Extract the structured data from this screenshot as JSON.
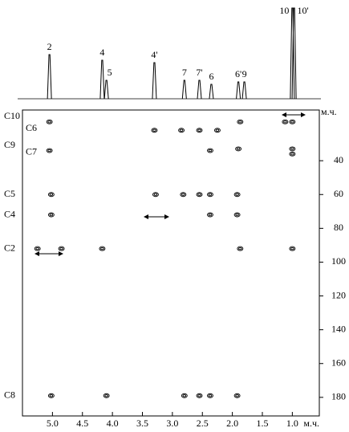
{
  "chart_data": {
    "type": "nmr2d",
    "x_unit": "м.ч.",
    "y_unit": "м.ч.",
    "xlim": [
      5.5,
      0.55
    ],
    "xticks": [
      {
        "value": 5,
        "label": "5.0"
      },
      4.5,
      {
        "value": 4,
        "label": "4.0"
      },
      3.5,
      {
        "value": 3,
        "label": "3.0"
      },
      2.5,
      {
        "value": 2,
        "label": "2.0"
      },
      1.5,
      {
        "value": 1,
        "label": "1.0"
      }
    ],
    "ylim": [
      10,
      191
    ],
    "yticks": [
      40,
      60,
      80,
      100,
      120,
      140,
      160,
      180
    ],
    "color": "#000000",
    "spectrum": {
      "labels": [
        "2",
        "4",
        "5",
        "4'",
        "7",
        "7'",
        "6",
        "6'",
        "9",
        "10",
        "10'"
      ],
      "ppm": [
        5.05,
        4.17,
        4.1,
        3.3,
        2.8,
        2.55,
        2.35,
        1.9,
        1.8,
        1.0,
        0.97
      ],
      "height": [
        55,
        48,
        23,
        45,
        23,
        23,
        18,
        21,
        21,
        113,
        113
      ]
    },
    "carbon_labels": {
      "labels": [
        "C10",
        "C6",
        "C9",
        "C7",
        "C5",
        "C4",
        "C2",
        "C8"
      ],
      "ppm": [
        14,
        21,
        31,
        35,
        60,
        72,
        92,
        179
      ]
    },
    "cross_peaks": {
      "x": [
        5.05,
        3.3,
        2.85,
        2.55,
        2.25,
        1.87,
        1.12,
        1.0,
        5.05,
        2.37,
        1.9,
        1.0,
        1.0,
        5.02,
        3.28,
        2.82,
        2.55,
        2.37,
        1.92,
        5.02,
        2.37,
        1.92,
        5.25,
        4.85,
        4.17,
        1.87,
        1.0,
        5.02,
        4.1,
        2.8,
        2.55,
        2.37,
        1.92
      ],
      "y": [
        17,
        22,
        22,
        22,
        22,
        17,
        17,
        17,
        34,
        34,
        33,
        33,
        36,
        60,
        60,
        60,
        60,
        60,
        60,
        72,
        72,
        72,
        92,
        92,
        92,
        92,
        92,
        179,
        179,
        179,
        179,
        179,
        179
      ]
    }
  }
}
